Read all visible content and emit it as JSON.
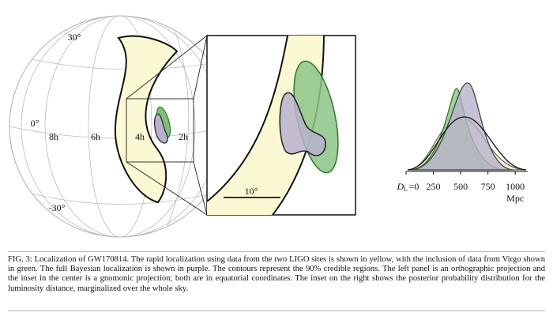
{
  "globe": {
    "lat_labels": [
      "30°",
      "0°",
      "-30°"
    ],
    "ra_labels": [
      "8h",
      "6h",
      "4h",
      "2h"
    ]
  },
  "inset": {
    "scale_label": "10°"
  },
  "distance_plot": {
    "symbol": "D",
    "subscript": "L",
    "unit": "Mpc",
    "xlim": [
      0,
      1100
    ],
    "xticks": [
      {
        "value": 0,
        "label": "=0"
      },
      250,
      500,
      750,
      1000
    ]
  },
  "caption": {
    "label": "FIG. 3:",
    "text": "Localization of GW170814. The rapid localization using data from the two LIGO sites is shown in yellow, with the inclusion of data from Virgo shown in green. The full Bayesian localization is shown in purple. The contours represent the 90% credible regions. The left panel is an orthographic projection and the inset in the center is a gnomonic projection; both are in equatorial coordinates. The inset on the right shows the posterior probability distribution for the luminosity distance, marginalized over the whole sky."
  }
}
